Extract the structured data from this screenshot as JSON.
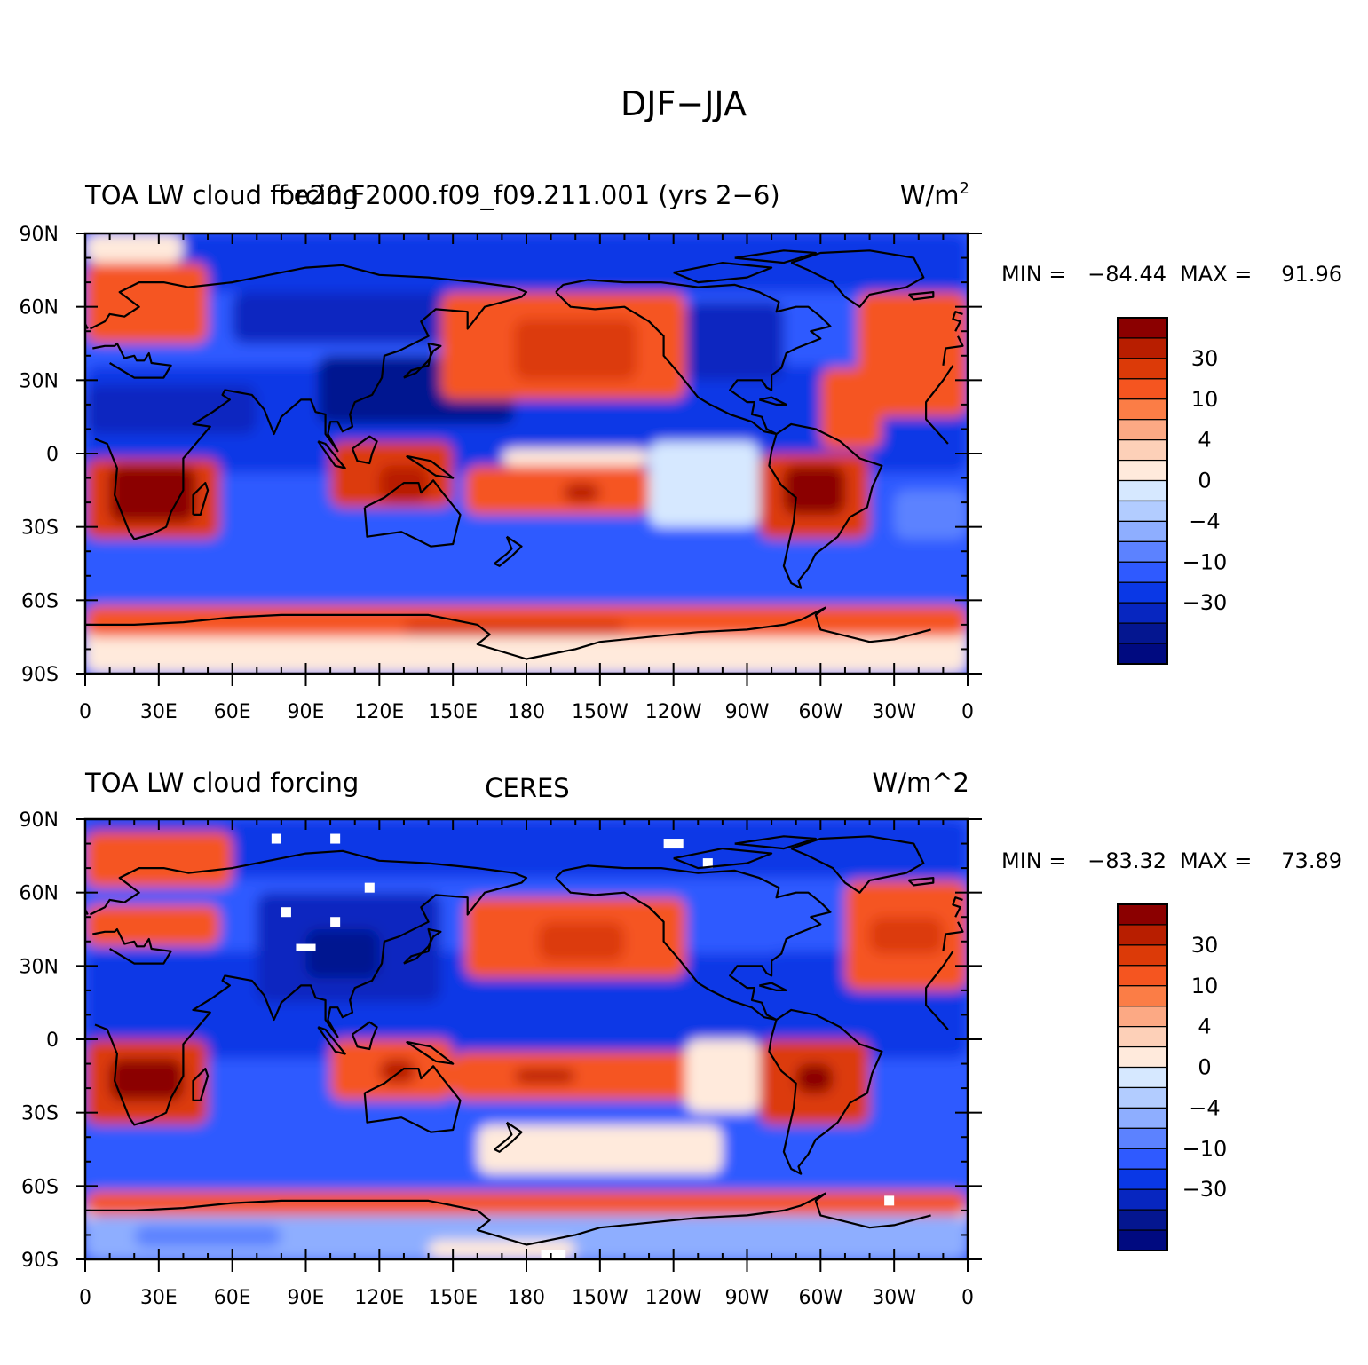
{
  "figure": {
    "title": "DJF−JJA"
  },
  "panels": [
    {
      "id": "model",
      "left_title": "TOA LW cloud forcing",
      "center_title": "",
      "case_title": "f.e20.F2000.f09_f09.211.001 (yrs 2−6)",
      "units_label": "W/m",
      "units_sup": "2",
      "min_label": "MIN =",
      "min_value": "−84.44",
      "max_label": "MAX =",
      "max_value": "91.96",
      "has_missing": false
    },
    {
      "id": "obs",
      "left_title": "TOA LW cloud forcing",
      "center_title": "CERES",
      "case_title": "",
      "units_label": "W/m^2",
      "units_sup": "",
      "min_label": "MIN =",
      "min_value": "−83.32",
      "max_label": "MAX =",
      "max_value": "73.89",
      "has_missing": true
    }
  ],
  "map_data": {
    "projection": "cylindrical-equidistant",
    "lon_range": [
      0,
      360
    ],
    "lat_range": [
      -90,
      90
    ],
    "lon_ticks": [
      {
        "lon": 0,
        "label": "0"
      },
      {
        "lon": 30,
        "label": "30E"
      },
      {
        "lon": 60,
        "label": "60E"
      },
      {
        "lon": 90,
        "label": "90E"
      },
      {
        "lon": 120,
        "label": "120E"
      },
      {
        "lon": 150,
        "label": "150E"
      },
      {
        "lon": 180,
        "label": "180"
      },
      {
        "lon": 210,
        "label": "150W"
      },
      {
        "lon": 240,
        "label": "120W"
      },
      {
        "lon": 270,
        "label": "90W"
      },
      {
        "lon": 300,
        "label": "60W"
      },
      {
        "lon": 330,
        "label": "30W"
      },
      {
        "lon": 360,
        "label": "0"
      }
    ],
    "lat_ticks": [
      {
        "lat": 90,
        "label": "90N"
      },
      {
        "lat": 60,
        "label": "60N"
      },
      {
        "lat": 30,
        "label": "30N"
      },
      {
        "lat": 0,
        "label": "0"
      },
      {
        "lat": -30,
        "label": "30S"
      },
      {
        "lat": -60,
        "label": "60S"
      },
      {
        "lat": -90,
        "label": "90S"
      }
    ]
  },
  "colorbar": {
    "colors": [
      "#8b0000",
      "#b81e00",
      "#dc3a08",
      "#f55520",
      "#fb7d46",
      "#fca984",
      "#fdd0b8",
      "#ffeadc",
      "#d6e8ff",
      "#b2ccff",
      "#8eaeff",
      "#5c82ff",
      "#2f5aff",
      "#0a38e6",
      "#0726c0",
      "#041690",
      "#000a80"
    ],
    "labels": [
      {
        "after": 1,
        "text": "30"
      },
      {
        "after": 3,
        "text": "10"
      },
      {
        "after": 5,
        "text": "4"
      },
      {
        "after": 7,
        "text": "0"
      },
      {
        "after": 9,
        "text": "−4"
      },
      {
        "after": 11,
        "text": "−10"
      },
      {
        "after": 13,
        "text": "−30"
      }
    ]
  }
}
